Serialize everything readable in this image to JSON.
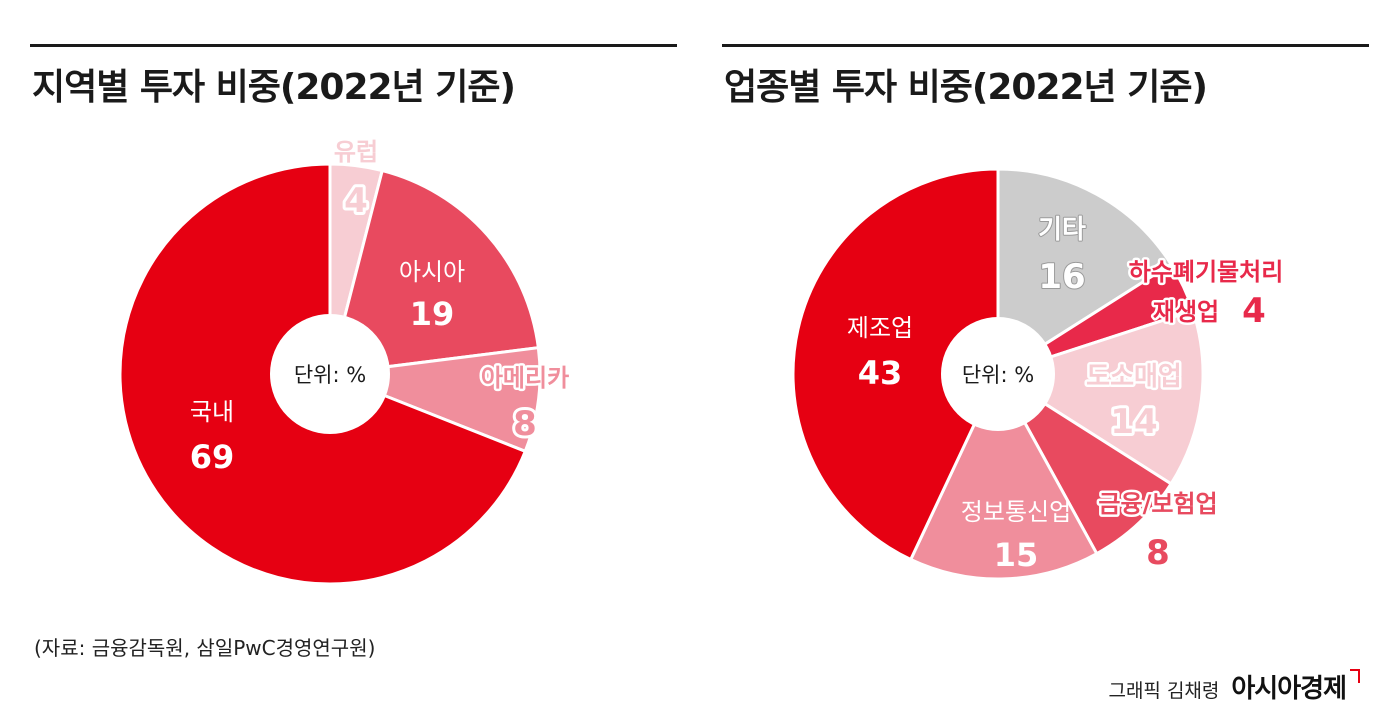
{
  "left_title": "지역별 투자 비중(2022년 기준)",
  "right_title": "업종별 투자 비중(2022년 기준)",
  "source": "(자료: 금융감독원, 삼일PwC경영연구원)",
  "credit_label": "그래픽 김채령",
  "brand": "아시아경제",
  "chart_data": [
    {
      "type": "pie",
      "title": "지역별 투자 비중(2022년 기준)",
      "center_label": "단위: %",
      "slices": [
        {
          "label": "유럽",
          "value": 4,
          "color": "#f7cdd3"
        },
        {
          "label": "아시아",
          "value": 19,
          "color": "#e84a5f"
        },
        {
          "label": "아메리카",
          "value": 8,
          "color": "#f08e9c"
        },
        {
          "label": "국내",
          "value": 69,
          "color": "#e60012"
        }
      ]
    },
    {
      "type": "pie",
      "title": "업종별 투자 비중(2022년 기준)",
      "center_label": "단위: %",
      "slices": [
        {
          "label": "기타",
          "value": 16,
          "color": "#cccccc"
        },
        {
          "label": "하수폐기물처리 재생업",
          "value": 4,
          "color": "#e8294a"
        },
        {
          "label": "도소매업",
          "value": 14,
          "color": "#f7cdd3"
        },
        {
          "label": "금융/보험업",
          "value": 8,
          "color": "#e84a5f"
        },
        {
          "label": "정보통신업",
          "value": 15,
          "color": "#f08e9c"
        },
        {
          "label": "제조업",
          "value": 43,
          "color": "#e60012"
        }
      ]
    }
  ]
}
